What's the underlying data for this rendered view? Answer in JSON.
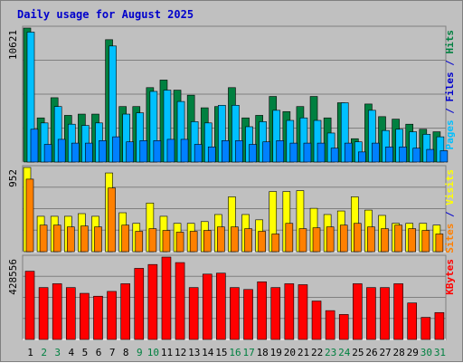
{
  "chart_data": {
    "type": "bar",
    "title": "Daily usage for August 2025",
    "categories": [
      "1",
      "2",
      "3",
      "4",
      "5",
      "6",
      "7",
      "8",
      "9",
      "10",
      "11",
      "12",
      "13",
      "14",
      "15",
      "16",
      "17",
      "18",
      "19",
      "20",
      "21",
      "22",
      "23",
      "24",
      "25",
      "26",
      "27",
      "28",
      "29",
      "30",
      "31"
    ],
    "weekend_days": [
      "2",
      "3",
      "9",
      "10",
      "16",
      "17",
      "23",
      "24",
      "30",
      "31"
    ],
    "colors": {
      "hits": "#008040",
      "files": "#00c0ff",
      "pages": "#0080ff",
      "visits": "#ffff00",
      "sites": "#ff8000",
      "kbytes": "#ff0000",
      "weekday_label": "#000000",
      "weekend_label": "#008040",
      "title": "#0000cc",
      "background": "#c0c0c0"
    },
    "panels": [
      {
        "id": "hits_files_pages",
        "ymax_label": "10621",
        "ymax": 10621,
        "right_label": [
          {
            "text": "Pages",
            "color": "#00c0ff"
          },
          {
            "text": " / ",
            "color": "#0000cc"
          },
          {
            "text": "Files",
            "color": "#0000cc"
          },
          {
            "text": " / ",
            "color": "#0000cc"
          },
          {
            "text": "Hits",
            "color": "#008040"
          }
        ],
        "series": [
          {
            "name": "Hits",
            "color": "#008040",
            "values": [
              10621,
              3500,
              5100,
              3700,
              3800,
              3800,
              9700,
              4400,
              4400,
              5900,
              6500,
              5700,
              5300,
              4300,
              4400,
              5900,
              3500,
              3700,
              5200,
              4000,
              4400,
              5200,
              3500,
              4700,
              1850,
              4600,
              3600,
              3400,
              3000,
              2600,
              2400
            ]
          },
          {
            "name": "Files",
            "color": "#00c0ff",
            "values": [
              10300,
              3100,
              4400,
              3000,
              2900,
              3100,
              9200,
              3800,
              3900,
              5600,
              5700,
              4800,
              3200,
              3100,
              4500,
              4500,
              2800,
              3200,
              4100,
              3300,
              3500,
              3300,
              2300,
              4700,
              1600,
              4100,
              2500,
              2600,
              2400,
              2200,
              2000
            ]
          },
          {
            "name": "Pages",
            "color": "#0080ff",
            "values": [
              2600,
              1400,
              1800,
              1500,
              1500,
              1700,
              2000,
              1600,
              1700,
              1700,
              1800,
              1800,
              1400,
              1200,
              1700,
              1700,
              1400,
              1600,
              1700,
              1500,
              1500,
              1500,
              1100,
              1500,
              800,
              1500,
              1200,
              1200,
              1100,
              1000,
              900
            ]
          }
        ]
      },
      {
        "id": "visits_sites",
        "ymax_label": "952",
        "ymax": 952,
        "right_label": [
          {
            "text": "Sites",
            "color": "#ff8000"
          },
          {
            "text": " / ",
            "color": "#0000cc"
          },
          {
            "text": "Visits",
            "color": "#ffff00"
          }
        ],
        "series": [
          {
            "name": "Visits",
            "color": "#ffff00",
            "values": [
              952,
              400,
              400,
              400,
              430,
              400,
              890,
              440,
              320,
              550,
              400,
              320,
              320,
              340,
              420,
              620,
              420,
              360,
              680,
              680,
              690,
              490,
              420,
              460,
              620,
              470,
              410,
              320,
              320,
              320,
              300
            ]
          },
          {
            "name": "Sites",
            "color": "#ff8000",
            "values": [
              820,
              300,
              300,
              280,
              290,
              280,
              720,
              300,
              230,
              260,
              240,
              220,
              230,
              240,
              280,
              280,
              260,
              230,
              200,
              320,
              260,
              270,
              280,
              300,
              320,
              280,
              260,
              300,
              260,
              240,
              200
            ]
          }
        ]
      },
      {
        "id": "kbytes",
        "ymax_label": "428556",
        "ymax": 428556,
        "right_label": [
          {
            "text": "KBytes",
            "color": "#ff0000"
          }
        ],
        "series": [
          {
            "name": "KBytes",
            "color": "#ff0000",
            "values": [
              355000,
              270000,
              290000,
              270000,
              240000,
              225000,
              250000,
              290000,
              370000,
              390000,
              428556,
              400000,
              270000,
              340000,
              345000,
              270000,
              260000,
              300000,
              270000,
              290000,
              285000,
              200000,
              150000,
              130000,
              290000,
              270000,
              270000,
              290000,
              190000,
              115000,
              140000
            ]
          }
        ]
      }
    ]
  }
}
